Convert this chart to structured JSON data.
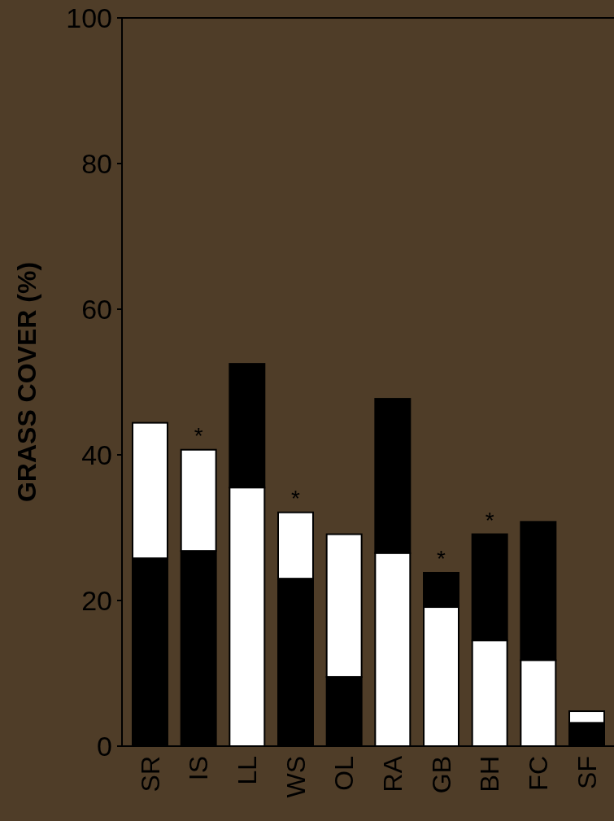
{
  "chart_data": {
    "type": "bar",
    "ylabel": "GRASS COVER (%)",
    "categories": [
      "SR",
      "IS",
      "LL",
      "WS",
      "OL",
      "RA",
      "GB",
      "BH",
      "FC",
      "SF"
    ],
    "series": [
      {
        "color": "#000000",
        "base": [
          0,
          0,
          35.5,
          0,
          0,
          26.5,
          19.1,
          14.5,
          11.8,
          0
        ],
        "values": [
          25.8,
          26.8,
          17,
          23,
          9.5,
          21.2,
          4.7,
          14.6,
          19,
          3.2
        ]
      },
      {
        "color": "#ffffff",
        "base": [
          25.8,
          26.8,
          0,
          23,
          9.5,
          0,
          0,
          0,
          0,
          3.2
        ],
        "values": [
          18.6,
          13.9,
          35.5,
          9.1,
          19.6,
          26.5,
          19.1,
          14.5,
          11.8,
          1.6
        ]
      }
    ],
    "ylim": [
      0,
      100
    ],
    "yticks": [
      0,
      20,
      40,
      60,
      80,
      100
    ],
    "grid": false,
    "annotations": [
      {
        "text": "*",
        "x": "IS",
        "y": 40.7
      },
      {
        "text": "*",
        "x": "WS",
        "y": 32.1
      },
      {
        "text": "*",
        "x": "GB",
        "y": 23.8
      },
      {
        "text": "*",
        "x": "BH",
        "y": 29.1
      }
    ]
  }
}
